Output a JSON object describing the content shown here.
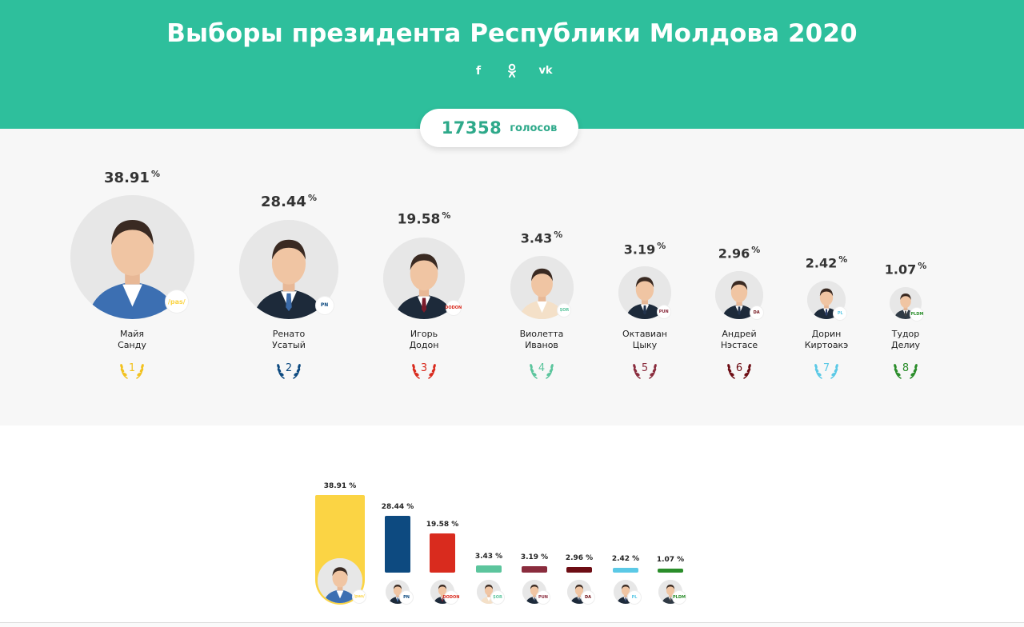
{
  "header": {
    "title": "Выборы президента Республики Молдова 2020"
  },
  "social": [
    {
      "name": "facebook-icon",
      "glyph": "f"
    },
    {
      "name": "odnoklassniki-icon",
      "glyph": "ok"
    },
    {
      "name": "vk-icon",
      "glyph": "vk"
    }
  ],
  "votes": {
    "count": "17358",
    "label": "голосов"
  },
  "candidates": [
    {
      "first": "Майя",
      "last": "Санду",
      "pct": "38.91",
      "pct_sign": "%",
      "rank": "1",
      "party": "/pas/",
      "color": "#fbd444",
      "rank_color": "#f2c21f"
    },
    {
      "first": "Ренато",
      "last": "Усатый",
      "pct": "28.44",
      "pct_sign": "%",
      "rank": "2",
      "party": "PN",
      "color": "#0d4a80",
      "rank_color": "#0d4a80"
    },
    {
      "first": "Игорь",
      "last": "Додон",
      "pct": "19.58",
      "pct_sign": "%",
      "rank": "3",
      "party": "DODON",
      "color": "#d92b1e",
      "rank_color": "#d92b1e"
    },
    {
      "first": "Виолетта",
      "last": "Иванов",
      "pct": "3.43",
      "pct_sign": "%",
      "rank": "4",
      "party": "ȘOR",
      "color": "#5cc59d",
      "rank_color": "#5cc59d"
    },
    {
      "first": "Октавиан",
      "last": "Цыку",
      "pct": "3.19",
      "pct_sign": "%",
      "rank": "5",
      "party": "PUN",
      "color": "#8a2c3d",
      "rank_color": "#8a2c3d"
    },
    {
      "first": "Андрей",
      "last": "Нэстасе",
      "pct": "2.96",
      "pct_sign": "%",
      "rank": "6",
      "party": "DA",
      "color": "#6d0d14",
      "rank_color": "#6d0d14"
    },
    {
      "first": "Дорин",
      "last": "Киртоакэ",
      "pct": "2.42",
      "pct_sign": "%",
      "rank": "7",
      "party": "PL",
      "color": "#5bc9e6",
      "rank_color": "#5bc9e6"
    },
    {
      "first": "Тудор",
      "last": "Делиу",
      "pct": "1.07",
      "pct_sign": "%",
      "rank": "8",
      "party": "PLDM",
      "color": "#2a8d2a",
      "rank_color": "#2a8d2a"
    }
  ],
  "chart_data": {
    "type": "bar",
    "categories": [
      "Майя Санду",
      "Ренато Усатый",
      "Игорь Додон",
      "Виолетта Иванов",
      "Октавиан Цыку",
      "Андрей Нэстасе",
      "Дорин Киртоакэ",
      "Тудор Делиу"
    ],
    "values": [
      38.91,
      28.44,
      19.58,
      3.43,
      3.19,
      2.96,
      2.42,
      1.07
    ],
    "labels": [
      "38.91 %",
      "28.44 %",
      "19.58 %",
      "3.43 %",
      "3.19 %",
      "2.96 %",
      "2.42 %",
      "1.07 %"
    ],
    "colors": [
      "#fbd444",
      "#0d4a80",
      "#d92b1e",
      "#5cc59d",
      "#8a2c3d",
      "#6d0d14",
      "#5bc9e6",
      "#2a8d2a"
    ],
    "ylim": [
      0,
      40
    ]
  }
}
